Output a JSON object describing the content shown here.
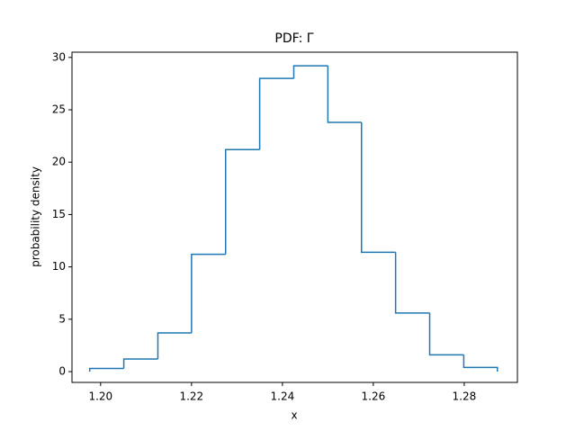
{
  "chart_data": {
    "type": "histogram",
    "title": "PDF: Γ",
    "x_label": "x",
    "y_label": "probability density",
    "bins": [
      1.1976,
      1.2051,
      1.2126,
      1.22,
      1.2275,
      1.235,
      1.2425,
      1.25,
      1.2574,
      1.2649,
      1.2724,
      1.2799,
      1.2873
    ],
    "values": [
      0.3,
      1.2,
      3.7,
      11.2,
      21.2,
      28.0,
      29.2,
      23.8,
      11.4,
      5.6,
      1.6,
      0.4
    ],
    "color": "#1f77b4",
    "xlim": [
      1.1937,
      1.2917
    ],
    "xticks": [
      {
        "value": 1.2,
        "label": "1.20"
      },
      {
        "value": 1.22,
        "label": "1.22"
      },
      {
        "value": 1.24,
        "label": "1.24"
      },
      {
        "value": 1.26,
        "label": "1.26"
      },
      {
        "value": 1.28,
        "label": "1.28"
      }
    ],
    "ylim": [
      -1.03,
      30.5
    ],
    "yticks": [
      0,
      5,
      10,
      15,
      20,
      25,
      30
    ],
    "grid": false
  }
}
